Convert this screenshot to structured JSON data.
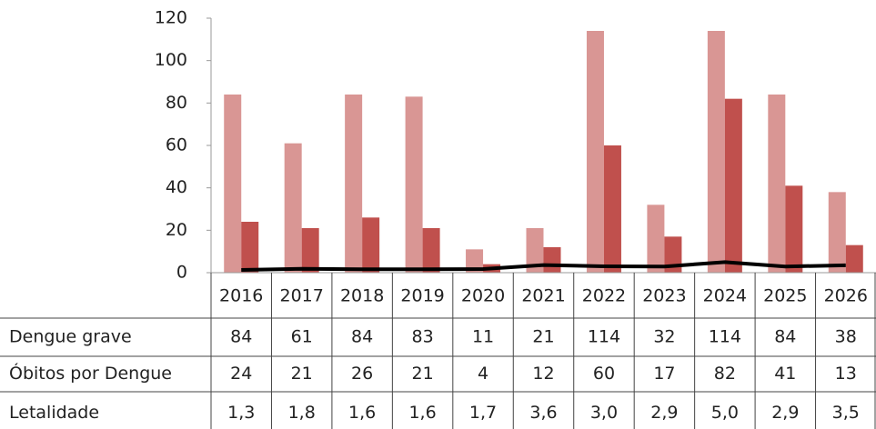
{
  "chart_data": {
    "type": "bar",
    "categories": [
      "2016",
      "2017",
      "2018",
      "2019",
      "2020",
      "2021",
      "2022",
      "2023",
      "2024",
      "2025",
      "2026"
    ],
    "series": [
      {
        "name": "Dengue grave",
        "color": "#d99694",
        "values": [
          84,
          61,
          84,
          83,
          11,
          21,
          114,
          32,
          114,
          84,
          38
        ]
      },
      {
        "name": "Óbitos por Dengue",
        "color": "#c0504d",
        "values": [
          24,
          21,
          26,
          21,
          4,
          12,
          60,
          17,
          82,
          41,
          13
        ]
      },
      {
        "name": "Letalidade",
        "type": "line",
        "color": "#000000",
        "values": [
          1.3,
          1.8,
          1.6,
          1.6,
          1.7,
          3.6,
          3.0,
          2.9,
          5.0,
          2.9,
          3.5
        ],
        "value_labels": [
          "1,3",
          "1,8",
          "1,6",
          "1,6",
          "1,7",
          "3,6",
          "3,0",
          "2,9",
          "5,0",
          "2,9",
          "3,5"
        ]
      }
    ],
    "ylim": [
      0,
      120
    ],
    "yticks": [
      0,
      20,
      40,
      60,
      80,
      100,
      120
    ],
    "grid": false
  }
}
